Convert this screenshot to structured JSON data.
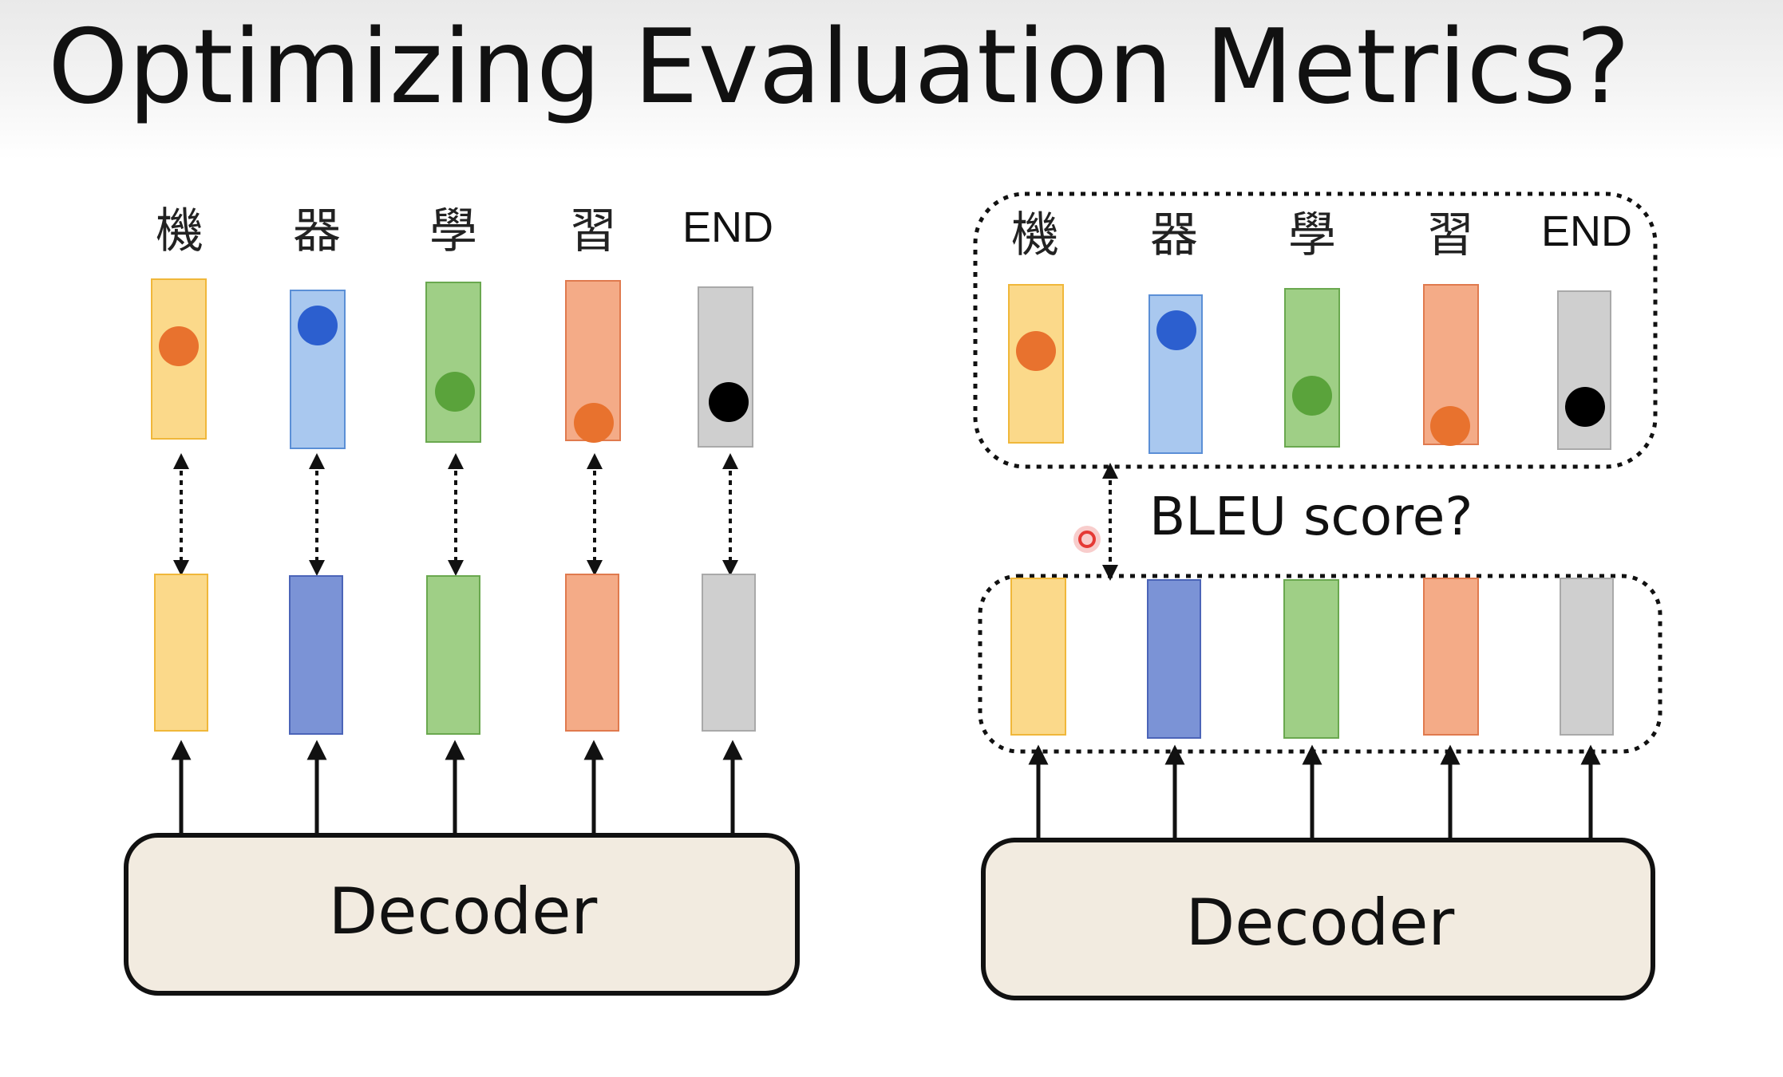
{
  "title": "Optimizing Evaluation Metrics?",
  "tokens": [
    "機",
    "器",
    "學",
    "習",
    "END"
  ],
  "decoder_label": "Decoder",
  "bleu_label": "BLEU score?",
  "colors": {
    "yellow_fill": "#fbd98a",
    "yellow_stroke": "#f0b73a",
    "blue_top_fill": "#a9c8ef",
    "blue_top_stroke": "#5b8fd6",
    "blue_bottom_fill": "#7b93d6",
    "blue_bottom_stroke": "#4b64b8",
    "green_fill": "#9fcf86",
    "green_stroke": "#6aa84f",
    "salmon_fill": "#f4ab87",
    "salmon_stroke": "#e07a4e",
    "gray_fill": "#cfcfcf",
    "gray_stroke": "#a9a9a9",
    "dot_orange": "#e8722e",
    "dot_blue": "#2c5fcf",
    "dot_green": "#5aa33b",
    "dot_black": "#000000",
    "decoder_fill": "#f2ebe0",
    "decoder_stroke": "#111111",
    "cursor_red": "#e53935"
  }
}
